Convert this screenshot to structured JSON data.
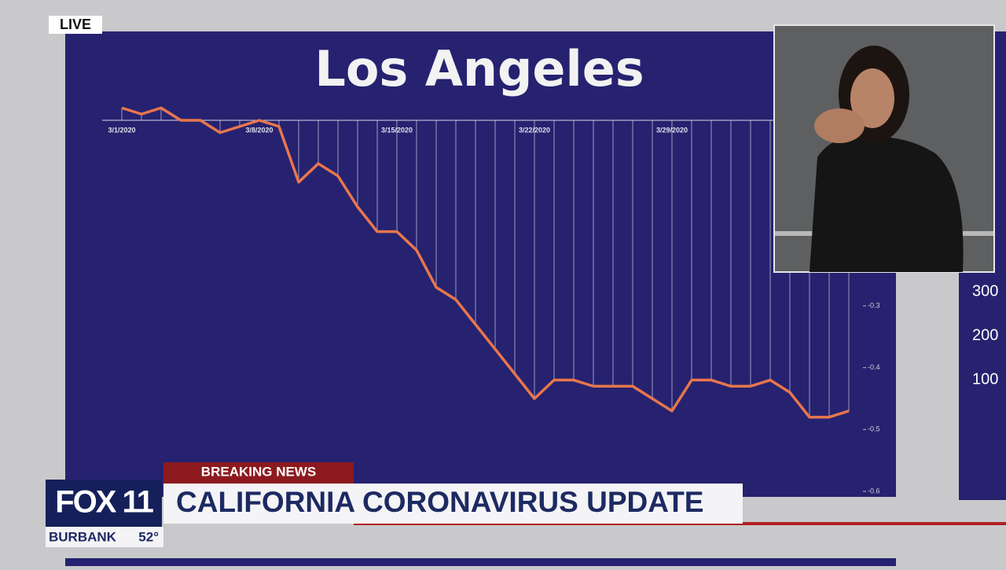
{
  "overlays": {
    "live": "LIVE",
    "breaking": "BREAKING NEWS",
    "station": "FOX 11",
    "headline": "CALIFORNIA CORONAVIRUS UPDATE",
    "location": "BURBANK",
    "temperature": "52°",
    "side_ticks": [
      "300",
      "200",
      "100"
    ]
  },
  "chart_data": {
    "type": "line",
    "title": "Los Angeles",
    "categories": [
      "3/1/2020",
      null,
      null,
      null,
      null,
      null,
      null,
      "3/8/2020",
      null,
      null,
      null,
      null,
      null,
      null,
      "3/15/2020",
      null,
      null,
      null,
      null,
      null,
      null,
      "3/22/2020",
      null,
      null,
      null,
      null,
      null,
      null,
      "3/29/2020",
      null,
      null,
      null,
      null,
      null,
      null,
      null,
      null,
      null
    ],
    "series": [
      {
        "color": "#e8764c",
        "values": [
          0.02,
          0.01,
          0.02,
          0.0,
          0.0,
          -0.02,
          -0.01,
          0.0,
          -0.01,
          -0.1,
          -0.07,
          -0.09,
          -0.14,
          -0.18,
          -0.18,
          -0.21,
          -0.27,
          -0.29,
          -0.33,
          -0.37,
          -0.41,
          -0.45,
          -0.42,
          -0.42,
          -0.43,
          -0.43,
          -0.43,
          -0.45,
          -0.47,
          -0.42,
          -0.42,
          -0.43,
          -0.43,
          -0.42,
          -0.44,
          -0.48,
          -0.48,
          -0.47
        ]
      }
    ],
    "ylim": [
      -0.6,
      0.03
    ],
    "yticks": [
      -0.3,
      -0.4,
      -0.5,
      -0.6
    ]
  }
}
